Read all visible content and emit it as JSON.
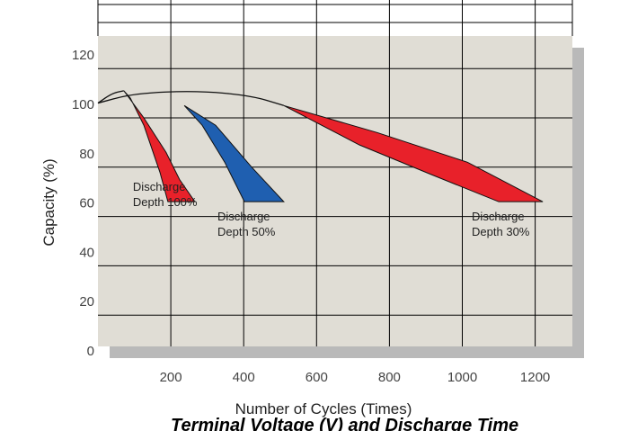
{
  "chart_data": {
    "type": "area",
    "xlabel": "Number of Cycles (Times)",
    "ylabel": "Capacity (%)",
    "caption": "Terminal Voltage (V) and Discharge Time",
    "xlim": [
      0,
      1300
    ],
    "ylim": [
      0,
      120
    ],
    "xticks": [
      200,
      400,
      600,
      800,
      1000,
      1200
    ],
    "yticks": [
      0,
      20,
      40,
      60,
      80,
      100,
      120
    ],
    "grid": true,
    "series": [
      {
        "name": "Discharge Depth 100%",
        "color": "#e8212a",
        "x": [
          71,
          126,
          187,
          224,
          266,
          192,
          170,
          126,
          89
        ],
        "values": [
          111,
          100,
          86,
          75,
          66,
          66,
          78,
          97,
          108
        ]
      },
      {
        "name": "Discharge Depth 50%",
        "color": "#1f5fb0",
        "x": [
          237,
          323,
          422,
          510,
          402,
          348,
          286
        ],
        "values": [
          105,
          97,
          80,
          66,
          66,
          82,
          97
        ]
      },
      {
        "name": "Discharge Depth 30%",
        "color": "#e8212a",
        "x": [
          510,
          767,
          1014,
          1221,
          1100,
          915,
          718
        ],
        "values": [
          105,
          94,
          82,
          66,
          66,
          77,
          89
        ]
      }
    ],
    "curves": [
      {
        "x": [
          0,
          101,
          274,
          422,
          510
        ],
        "values": [
          106,
          110,
          111,
          109,
          105
        ]
      },
      {
        "x": [
          0,
          39,
          71
        ],
        "values": [
          106,
          110,
          111
        ]
      }
    ]
  }
}
